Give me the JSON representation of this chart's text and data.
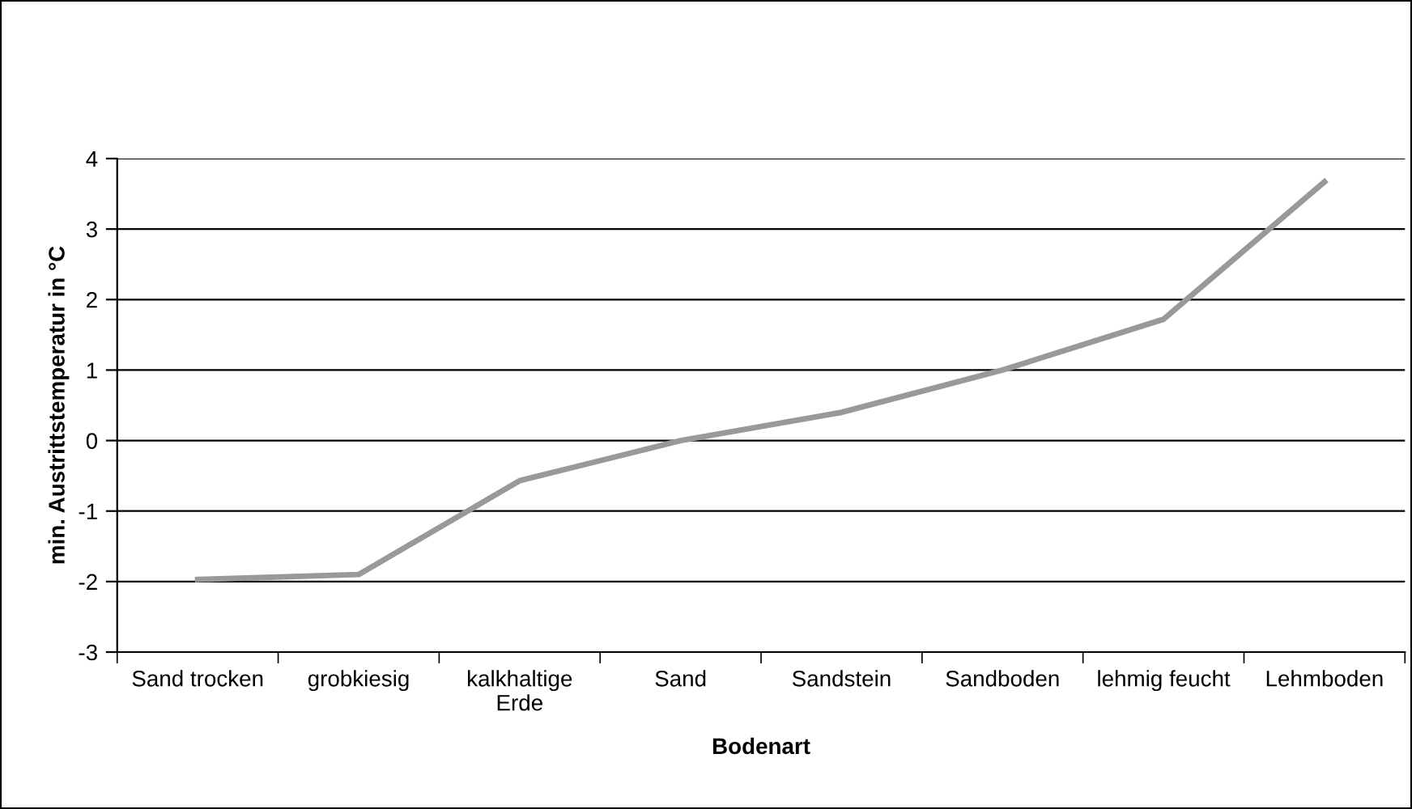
{
  "chart_data": {
    "type": "line",
    "xlabel": "Bodenart",
    "ylabel": "min. Austrittstemperatur in °C",
    "categories": [
      "Sand trocken",
      "grobkiesig",
      "kalkhaltige\nErde",
      "Sand",
      "Sandstein",
      "Sandboden",
      "lehmig feucht",
      "Lehmboden"
    ],
    "series": [
      {
        "color": "#999999",
        "values": [
          -1.97,
          -1.9,
          -0.57,
          0.0,
          0.4,
          1.0,
          1.72,
          3.67
        ]
      }
    ],
    "ylim": [
      -3,
      4
    ],
    "yticks": [
      -3,
      -2,
      -1,
      0,
      1,
      2,
      3,
      4
    ],
    "grid": "y",
    "legend": false,
    "marker": "none",
    "line_style": "solid"
  }
}
